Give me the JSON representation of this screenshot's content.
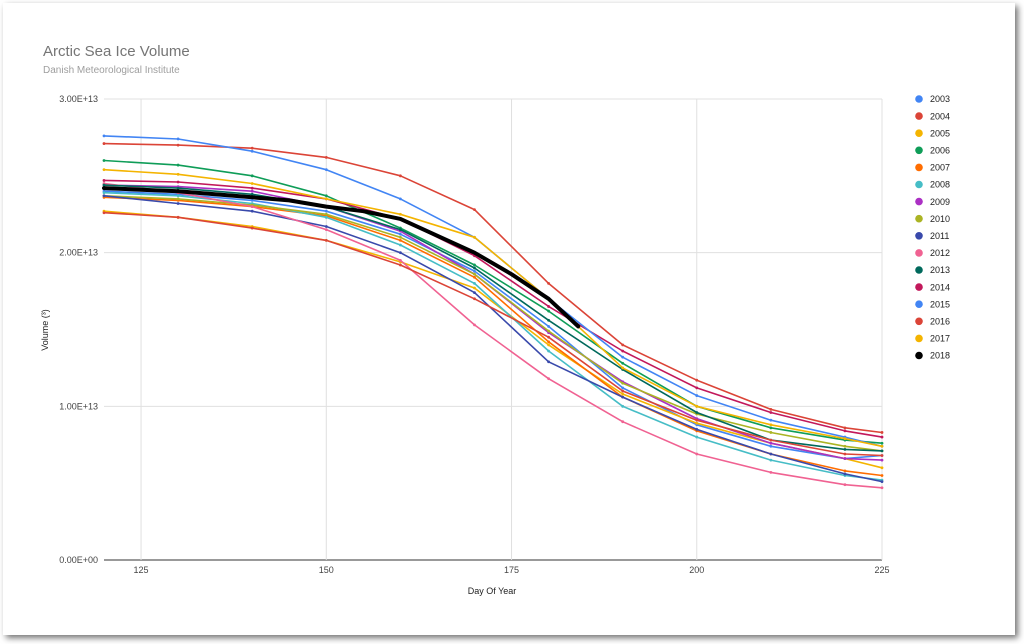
{
  "chart_data": {
    "type": "line",
    "title": "Arctic Sea Ice Volume",
    "subtitle": "Danish Meteorological Institute",
    "xlabel": "Day Of Year",
    "ylabel": "Volume (³)",
    "xlim": [
      120,
      225
    ],
    "ylim": [
      0,
      30000000000000
    ],
    "x_ticks": [
      125,
      150,
      175,
      200,
      225
    ],
    "y_ticks": [
      0,
      10000000000000,
      20000000000000,
      30000000000000
    ],
    "y_tick_labels": [
      "0.00E+00",
      "1.00E+13",
      "2.00E+13",
      "3.00E+13"
    ],
    "grid": true,
    "legend_position": "right",
    "series": [
      {
        "name": "2003",
        "color": "#4285f4",
        "x": [
          120,
          130,
          140,
          150,
          160,
          170,
          180,
          190,
          200,
          210,
          220,
          225
        ],
        "values": [
          24000000000000.0,
          23800000000000.0,
          23400000000000.0,
          22700000000000.0,
          21200000000000.0,
          18800000000000.0,
          15200000000000.0,
          11200000000000.0,
          8800000000000.0,
          7400000000000.0,
          6600000000000.0,
          6800000000000.0
        ]
      },
      {
        "name": "2004",
        "color": "#db4437",
        "x": [
          120,
          130,
          140,
          150,
          160,
          170,
          180,
          190,
          200,
          210,
          220,
          225
        ],
        "values": [
          27100000000000.0,
          27000000000000.0,
          26800000000000.0,
          26200000000000.0,
          25000000000000.0,
          22800000000000.0,
          18000000000000.0,
          14000000000000.0,
          11700000000000.0,
          9800000000000.0,
          8600000000000.0,
          8300000000000.0
        ]
      },
      {
        "name": "2005",
        "color": "#f4b400",
        "x": [
          120,
          130,
          140,
          150,
          160,
          170,
          180,
          190,
          200,
          210,
          220,
          225
        ],
        "values": [
          22700000000000.0,
          22300000000000.0,
          21700000000000.0,
          20800000000000.0,
          19400000000000.0,
          17700000000000.0,
          14000000000000.0,
          10800000000000.0,
          8900000000000.0,
          7600000000000.0,
          6600000000000.0,
          6000000000000.0
        ]
      },
      {
        "name": "2006",
        "color": "#0f9d58",
        "x": [
          120,
          130,
          140,
          150,
          160,
          170,
          180,
          190,
          200,
          210,
          220,
          225
        ],
        "values": [
          26000000000000.0,
          25700000000000.0,
          25000000000000.0,
          23700000000000.0,
          21600000000000.0,
          19200000000000.0,
          16200000000000.0,
          12800000000000.0,
          10000000000000.0,
          8600000000000.0,
          7800000000000.0,
          7600000000000.0
        ]
      },
      {
        "name": "2007",
        "color": "#ff6d00",
        "x": [
          120,
          130,
          140,
          150,
          160,
          170,
          180,
          190,
          200,
          210,
          220,
          225
        ],
        "values": [
          23600000000000.0,
          23400000000000.0,
          23000000000000.0,
          22400000000000.0,
          20800000000000.0,
          18400000000000.0,
          14200000000000.0,
          10600000000000.0,
          8400000000000.0,
          6900000000000.0,
          5800000000000.0,
          5500000000000.0
        ]
      },
      {
        "name": "2008",
        "color": "#46bdc6",
        "x": [
          120,
          130,
          140,
          150,
          160,
          170,
          180,
          190,
          200,
          210,
          220,
          225
        ],
        "values": [
          23900000000000.0,
          23700000000000.0,
          23200000000000.0,
          22300000000000.0,
          20500000000000.0,
          18000000000000.0,
          13600000000000.0,
          10000000000000.0,
          8000000000000.0,
          6500000000000.0,
          5500000000000.0,
          5200000000000.0
        ]
      },
      {
        "name": "2009",
        "color": "#ab30c4",
        "x": [
          120,
          130,
          140,
          150,
          160,
          170,
          180,
          190,
          200,
          210,
          220,
          225
        ],
        "values": [
          24400000000000.0,
          24300000000000.0,
          24000000000000.0,
          23000000000000.0,
          21400000000000.0,
          18600000000000.0,
          14800000000000.0,
          11600000000000.0,
          9200000000000.0,
          7600000000000.0,
          6600000000000.0,
          6500000000000.0
        ]
      },
      {
        "name": "2010",
        "color": "#abb424",
        "x": [
          120,
          130,
          140,
          150,
          160,
          170,
          180,
          190,
          200,
          210,
          220,
          225
        ],
        "values": [
          23700000000000.0,
          23500000000000.0,
          23100000000000.0,
          22500000000000.0,
          21000000000000.0,
          18600000000000.0,
          14900000000000.0,
          11500000000000.0,
          9500000000000.0,
          8300000000000.0,
          7400000000000.0,
          7100000000000.0
        ]
      },
      {
        "name": "2011",
        "color": "#3949ab",
        "x": [
          120,
          130,
          140,
          150,
          160,
          170,
          180,
          190,
          200,
          210,
          220,
          225
        ],
        "values": [
          23700000000000.0,
          23200000000000.0,
          22700000000000.0,
          21700000000000.0,
          20000000000000.0,
          17400000000000.0,
          12900000000000.0,
          10600000000000.0,
          8500000000000.0,
          6900000000000.0,
          5600000000000.0,
          5100000000000.0
        ]
      },
      {
        "name": "2012",
        "color": "#f06292",
        "x": [
          120,
          130,
          140,
          150,
          160,
          170,
          180,
          190,
          200,
          210,
          220,
          225
        ],
        "values": [
          24500000000000.0,
          23900000000000.0,
          23000000000000.0,
          21500000000000.0,
          19500000000000.0,
          15300000000000.0,
          11800000000000.0,
          9000000000000.0,
          6900000000000.0,
          5700000000000.0,
          4900000000000.0,
          4700000000000.0
        ]
      },
      {
        "name": "2013",
        "color": "#00695c",
        "x": [
          120,
          130,
          140,
          150,
          160,
          170,
          180,
          190,
          200,
          210,
          220,
          225
        ],
        "values": [
          24400000000000.0,
          24200000000000.0,
          23800000000000.0,
          23000000000000.0,
          21500000000000.0,
          19000000000000.0,
          15600000000000.0,
          12400000000000.0,
          9600000000000.0,
          7800000000000.0,
          7200000000000.0,
          7100000000000.0
        ]
      },
      {
        "name": "2014",
        "color": "#c2185b",
        "x": [
          120,
          130,
          140,
          150,
          160,
          170,
          180,
          190,
          200,
          210,
          220,
          225
        ],
        "values": [
          24700000000000.0,
          24600000000000.0,
          24200000000000.0,
          23500000000000.0,
          22200000000000.0,
          19800000000000.0,
          16500000000000.0,
          13600000000000.0,
          11200000000000.0,
          9600000000000.0,
          8400000000000.0,
          8000000000000.0
        ]
      },
      {
        "name": "2015",
        "color": "#4285f4",
        "x": [
          120,
          130,
          140,
          150,
          160,
          170,
          180,
          190,
          200,
          210,
          220,
          225
        ],
        "values": [
          27600000000000.0,
          27400000000000.0,
          26600000000000.0,
          25400000000000.0,
          23500000000000.0,
          21000000000000.0,
          17000000000000.0,
          13200000000000.0,
          10700000000000.0,
          9100000000000.0,
          8000000000000.0,
          7400000000000.0
        ]
      },
      {
        "name": "2016",
        "color": "#db4437",
        "x": [
          120,
          130,
          140,
          150,
          160,
          170,
          180,
          190,
          200,
          210,
          220,
          225
        ],
        "values": [
          22600000000000.0,
          22300000000000.0,
          21600000000000.0,
          20800000000000.0,
          19200000000000.0,
          17000000000000.0,
          14500000000000.0,
          11000000000000.0,
          9100000000000.0,
          7800000000000.0,
          6900000000000.0,
          6800000000000.0
        ]
      },
      {
        "name": "2017",
        "color": "#f4b400",
        "x": [
          120,
          130,
          140,
          150,
          160,
          170,
          180,
          190,
          200,
          210,
          220,
          225
        ],
        "values": [
          25400000000000.0,
          25100000000000.0,
          24500000000000.0,
          23500000000000.0,
          22500000000000.0,
          21000000000000.0,
          17000000000000.0,
          12500000000000.0,
          10000000000000.0,
          8800000000000.0,
          7900000000000.0,
          7400000000000.0
        ]
      },
      {
        "name": "2018",
        "color": "#000000",
        "x": [
          120,
          125,
          130,
          135,
          140,
          145,
          150,
          155,
          160,
          165,
          170,
          175,
          180,
          184
        ],
        "values": [
          24200000000000.0,
          24100000000000.0,
          24000000000000.0,
          23800000000000.0,
          23600000000000.0,
          23400000000000.0,
          23000000000000.0,
          22700000000000.0,
          22200000000000.0,
          21100000000000.0,
          20000000000000.0,
          18600000000000.0,
          17000000000000.0,
          15200000000000.0
        ]
      }
    ]
  }
}
